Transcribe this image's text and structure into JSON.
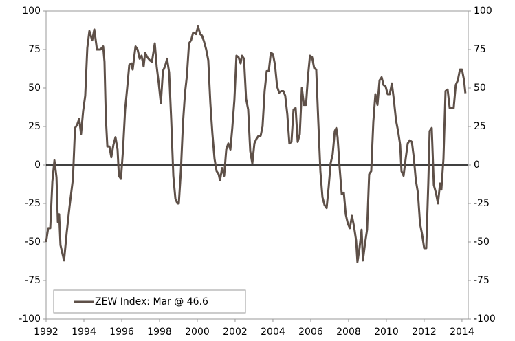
{
  "chart_data": {
    "type": "line",
    "x": [
      1992.0,
      1992.11,
      1992.22,
      1992.33,
      1992.44,
      1992.55,
      1992.62,
      1992.69,
      1992.76,
      1992.95,
      1993.09,
      1993.24,
      1993.42,
      1993.53,
      1993.64,
      1993.75,
      1993.85,
      1993.96,
      1994.07,
      1994.18,
      1994.29,
      1994.44,
      1994.55,
      1994.69,
      1994.87,
      1995.02,
      1995.09,
      1995.16,
      1995.24,
      1995.35,
      1995.45,
      1995.56,
      1995.67,
      1995.78,
      1995.85,
      1995.96,
      1996.07,
      1996.18,
      1996.29,
      1996.4,
      1996.51,
      1996.58,
      1996.73,
      1996.84,
      1996.95,
      1997.05,
      1997.16,
      1997.24,
      1997.35,
      1997.49,
      1997.6,
      1997.75,
      1997.85,
      1997.96,
      1998.07,
      1998.18,
      1998.29,
      1998.4,
      1998.51,
      1998.62,
      1998.73,
      1998.84,
      1998.95,
      1999.02,
      1999.13,
      1999.24,
      1999.35,
      1999.45,
      1999.56,
      1999.67,
      1999.78,
      1999.93,
      2000.04,
      2000.15,
      2000.25,
      2000.36,
      2000.47,
      2000.58,
      2000.69,
      2000.8,
      2000.91,
      2001.02,
      2001.13,
      2001.2,
      2001.31,
      2001.42,
      2001.53,
      2001.64,
      2001.75,
      2001.85,
      2001.96,
      2002.07,
      2002.18,
      2002.29,
      2002.36,
      2002.47,
      2002.58,
      2002.69,
      2002.8,
      2002.91,
      2003.02,
      2003.13,
      2003.24,
      2003.35,
      2003.45,
      2003.56,
      2003.67,
      2003.78,
      2003.89,
      2004.0,
      2004.11,
      2004.22,
      2004.33,
      2004.44,
      2004.55,
      2004.65,
      2004.76,
      2004.87,
      2004.98,
      2005.09,
      2005.2,
      2005.31,
      2005.42,
      2005.53,
      2005.64,
      2005.75,
      2005.85,
      2005.96,
      2006.07,
      2006.18,
      2006.29,
      2006.4,
      2006.51,
      2006.62,
      2006.73,
      2006.84,
      2006.95,
      2007.05,
      2007.16,
      2007.27,
      2007.35,
      2007.42,
      2007.53,
      2007.64,
      2007.75,
      2007.85,
      2007.96,
      2008.07,
      2008.18,
      2008.29,
      2008.4,
      2008.47,
      2008.58,
      2008.69,
      2008.76,
      2008.87,
      2008.98,
      2009.09,
      2009.2,
      2009.31,
      2009.42,
      2009.53,
      2009.64,
      2009.75,
      2009.85,
      2009.96,
      2010.07,
      2010.18,
      2010.29,
      2010.4,
      2010.51,
      2010.62,
      2010.73,
      2010.8,
      2010.91,
      2011.02,
      2011.13,
      2011.24,
      2011.35,
      2011.45,
      2011.56,
      2011.67,
      2011.78,
      2011.89,
      2012.0,
      2012.11,
      2012.22,
      2012.29,
      2012.4,
      2012.51,
      2012.62,
      2012.73,
      2012.84,
      2012.91,
      2013.02,
      2013.13,
      2013.24,
      2013.35,
      2013.45,
      2013.56,
      2013.67,
      2013.78,
      2013.89,
      2014.0,
      2014.11,
      2014.18
    ],
    "series": [
      {
        "name": "ZEW Index: Mar @ 46.6",
        "color": "#5e5048",
        "values": [
          -50,
          -41,
          -41,
          -11,
          3,
          -8,
          -37,
          -32,
          -52,
          -62,
          -44,
          -27,
          -9,
          24,
          26,
          30,
          20,
          35,
          45,
          76,
          87,
          81,
          88,
          75,
          75,
          77,
          67,
          31,
          12,
          12,
          5,
          13,
          18,
          10,
          -7,
          -9,
          10,
          36,
          50,
          65,
          66,
          62,
          77,
          75,
          69,
          71,
          64,
          73,
          70,
          68,
          67,
          79,
          64,
          53,
          40,
          61,
          64,
          69,
          60,
          29,
          -7,
          -22,
          -25,
          -25,
          -4,
          27,
          47,
          58,
          79,
          81,
          86,
          85,
          90,
          85,
          84,
          80,
          75,
          68,
          40,
          20,
          4,
          -4,
          -6,
          -10,
          -2,
          -7,
          10,
          14,
          10,
          24,
          42,
          71,
          70,
          66,
          71,
          69,
          43,
          36,
          9,
          1,
          14,
          17,
          19,
          19,
          25,
          48,
          61,
          61,
          73,
          72,
          65,
          51,
          47,
          48,
          48,
          45,
          33,
          14,
          15,
          36,
          37,
          15,
          20,
          50,
          39,
          39,
          57,
          71,
          70,
          63,
          62,
          28,
          -4,
          -21,
          -26,
          -28,
          -14,
          1,
          7,
          22,
          24,
          18,
          -2,
          -19,
          -18,
          -32,
          -38,
          -41,
          -33,
          -40,
          -49,
          -63,
          -54,
          -42,
          -62,
          -51,
          -42,
          -6,
          -4,
          28,
          46,
          39,
          55,
          57,
          52,
          51,
          46,
          46,
          53,
          42,
          29,
          22,
          13,
          -4,
          -7,
          4,
          14,
          16,
          15,
          5,
          -10,
          -18,
          -38,
          -45,
          -54,
          -54,
          -11,
          22,
          24,
          -13,
          -18,
          -25,
          -12,
          -16,
          4,
          48,
          49,
          37,
          37,
          37,
          52,
          55,
          62,
          62,
          55,
          46.6
        ]
      }
    ],
    "xlim": [
      1992,
      2014.33
    ],
    "xticks": [
      1992,
      1994,
      1996,
      1998,
      2000,
      2002,
      2004,
      2006,
      2008,
      2010,
      2012,
      2014
    ],
    "ylim": [
      -100,
      100
    ],
    "yticks": [
      -100,
      -75,
      -50,
      -25,
      0,
      25,
      50,
      75,
      100
    ],
    "y2lim": [
      -100,
      100
    ],
    "y2ticks": [
      -100,
      -75,
      -50,
      -25,
      0,
      25,
      50,
      75,
      100
    ],
    "zero_line": true,
    "legend": "lower-left"
  }
}
